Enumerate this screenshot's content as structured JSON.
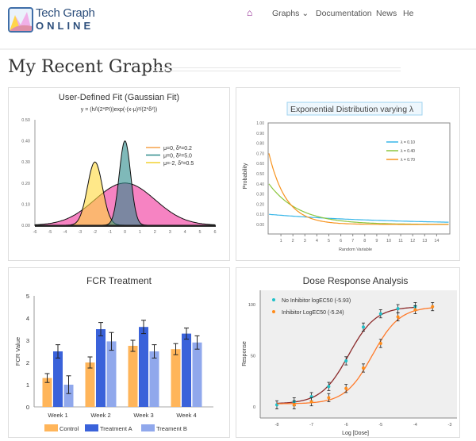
{
  "header": {
    "brand_line1": "Tech Graph",
    "brand_line2": "ONLINE",
    "nav": {
      "home_icon": "home-icon",
      "graphs": "Graphs",
      "graphs_chevron": "⌄",
      "documentation": "Documentation",
      "news": "News",
      "help_partial": "He"
    }
  },
  "page_title": "My Recent Graphs",
  "colors": {
    "accent": "#8b1a8b",
    "brand": "#2d4f7c"
  },
  "chart_data": [
    {
      "type": "area",
      "title": "User-Defined Fit (Gaussian Fit)",
      "subtitle": "y = (h/\\(2*PI))exp(-(x-μ)²/(2*δ²))",
      "xlim": [
        -6,
        6
      ],
      "ylim": [
        0,
        0.5
      ],
      "xticks": [
        "-6",
        "-5",
        "-4",
        "-3",
        "-2",
        "-1",
        "0",
        "1",
        "2",
        "3",
        "4",
        "5",
        "6"
      ],
      "yticks": [
        "0.00",
        "0.10",
        "0.20",
        "0.30",
        "0.40",
        "0.50"
      ],
      "legend": [
        "μ=0, δ²=0.2",
        "μ=0, δ²=5.0",
        "μ=-2, δ²=0.5"
      ],
      "legend_colors": [
        "#f5a24a",
        "#2e8b8b",
        "#f2d231"
      ],
      "series": [
        {
          "mu": 0,
          "peak": 0.2,
          "sigma": 2.0,
          "color": "#f0309a"
        },
        {
          "mu": -2,
          "peak": 0.3,
          "sigma": 0.5,
          "color": "#ffd83a"
        },
        {
          "mu": 0,
          "peak": 0.4,
          "sigma": 0.38,
          "color": "#2a8a8a"
        }
      ]
    },
    {
      "type": "line",
      "title": "Exponential Distribution varying λ",
      "xlabel": "Random Variable",
      "ylabel": "Probability",
      "xlim": [
        0,
        15
      ],
      "ylim": [
        0,
        1
      ],
      "xticks": [
        "1",
        "2",
        "3",
        "4",
        "5",
        "6",
        "7",
        "8",
        "9",
        "10",
        "11",
        "12",
        "13",
        "14"
      ],
      "yticks": [
        "0.00",
        "0.10",
        "0.20",
        "0.30",
        "0.40",
        "0.50",
        "0.60",
        "0.70",
        "0.80",
        "0.90",
        "1.00"
      ],
      "series": [
        {
          "name": "λ = 0.10",
          "lambda": 0.1,
          "color": "#38b6e8"
        },
        {
          "name": "λ = 0.40",
          "lambda": 0.4,
          "color": "#8cc63f"
        },
        {
          "name": "λ = 0.70",
          "lambda": 0.7,
          "color": "#f7931e"
        }
      ]
    },
    {
      "type": "bar",
      "title": "FCR Treatment",
      "ylabel": "FCR Value",
      "ylim": [
        0,
        5
      ],
      "yticks": [
        "0",
        "1",
        "2",
        "3",
        "4",
        "5"
      ],
      "categories": [
        "Week 1",
        "Week 2",
        "Week 3",
        "Week 4"
      ],
      "series": [
        {
          "name": "Control",
          "values": [
            1.3,
            2.0,
            2.75,
            2.6
          ],
          "errors": [
            0.2,
            0.25,
            0.25,
            0.25
          ],
          "color": "#ffb55a"
        },
        {
          "name": "Treatment A",
          "values": [
            2.5,
            3.5,
            3.6,
            3.3
          ],
          "errors": [
            0.3,
            0.3,
            0.3,
            0.25
          ],
          "color": "#3a62da"
        },
        {
          "name": "Treament B",
          "values": [
            1.0,
            2.95,
            2.5,
            2.9
          ],
          "errors": [
            0.4,
            0.4,
            0.3,
            0.3
          ],
          "color": "#90a8ec"
        }
      ]
    },
    {
      "type": "scatter",
      "title": "Dose Response Analysis",
      "xlabel": "Log [Dose]",
      "ylabel": "Response",
      "xlim": [
        -8.3,
        -3
      ],
      "ylim": [
        -10,
        110
      ],
      "xticks": [
        "-8",
        "-7",
        "-6",
        "-5",
        "-4",
        "-3"
      ],
      "yticks": [
        "0",
        "50",
        "100"
      ],
      "series": [
        {
          "name": "No Inhibitor logEC50 (-5.93)",
          "logEC50": -5.93,
          "point_color": "#20c0c8",
          "curve_color": "#8b2a2a",
          "x": [
            -8,
            -7.5,
            -7,
            -6.5,
            -6,
            -5.5,
            -5,
            -4.5,
            -4
          ],
          "y": [
            2,
            5,
            10,
            20,
            45,
            78,
            91,
            96,
            98
          ],
          "error": 4
        },
        {
          "name": "Inhibitor LogEC50 (-5.24)",
          "logEC50": -5.24,
          "point_color": "#ff8c1a",
          "curve_color": "#ff7a2a",
          "x": [
            -7.5,
            -7,
            -6.5,
            -6,
            -5.5,
            -5,
            -4.5,
            -4,
            -3.5
          ],
          "y": [
            2,
            5,
            9,
            18,
            38,
            62,
            88,
            95,
            98
          ],
          "error": 4
        }
      ]
    }
  ]
}
